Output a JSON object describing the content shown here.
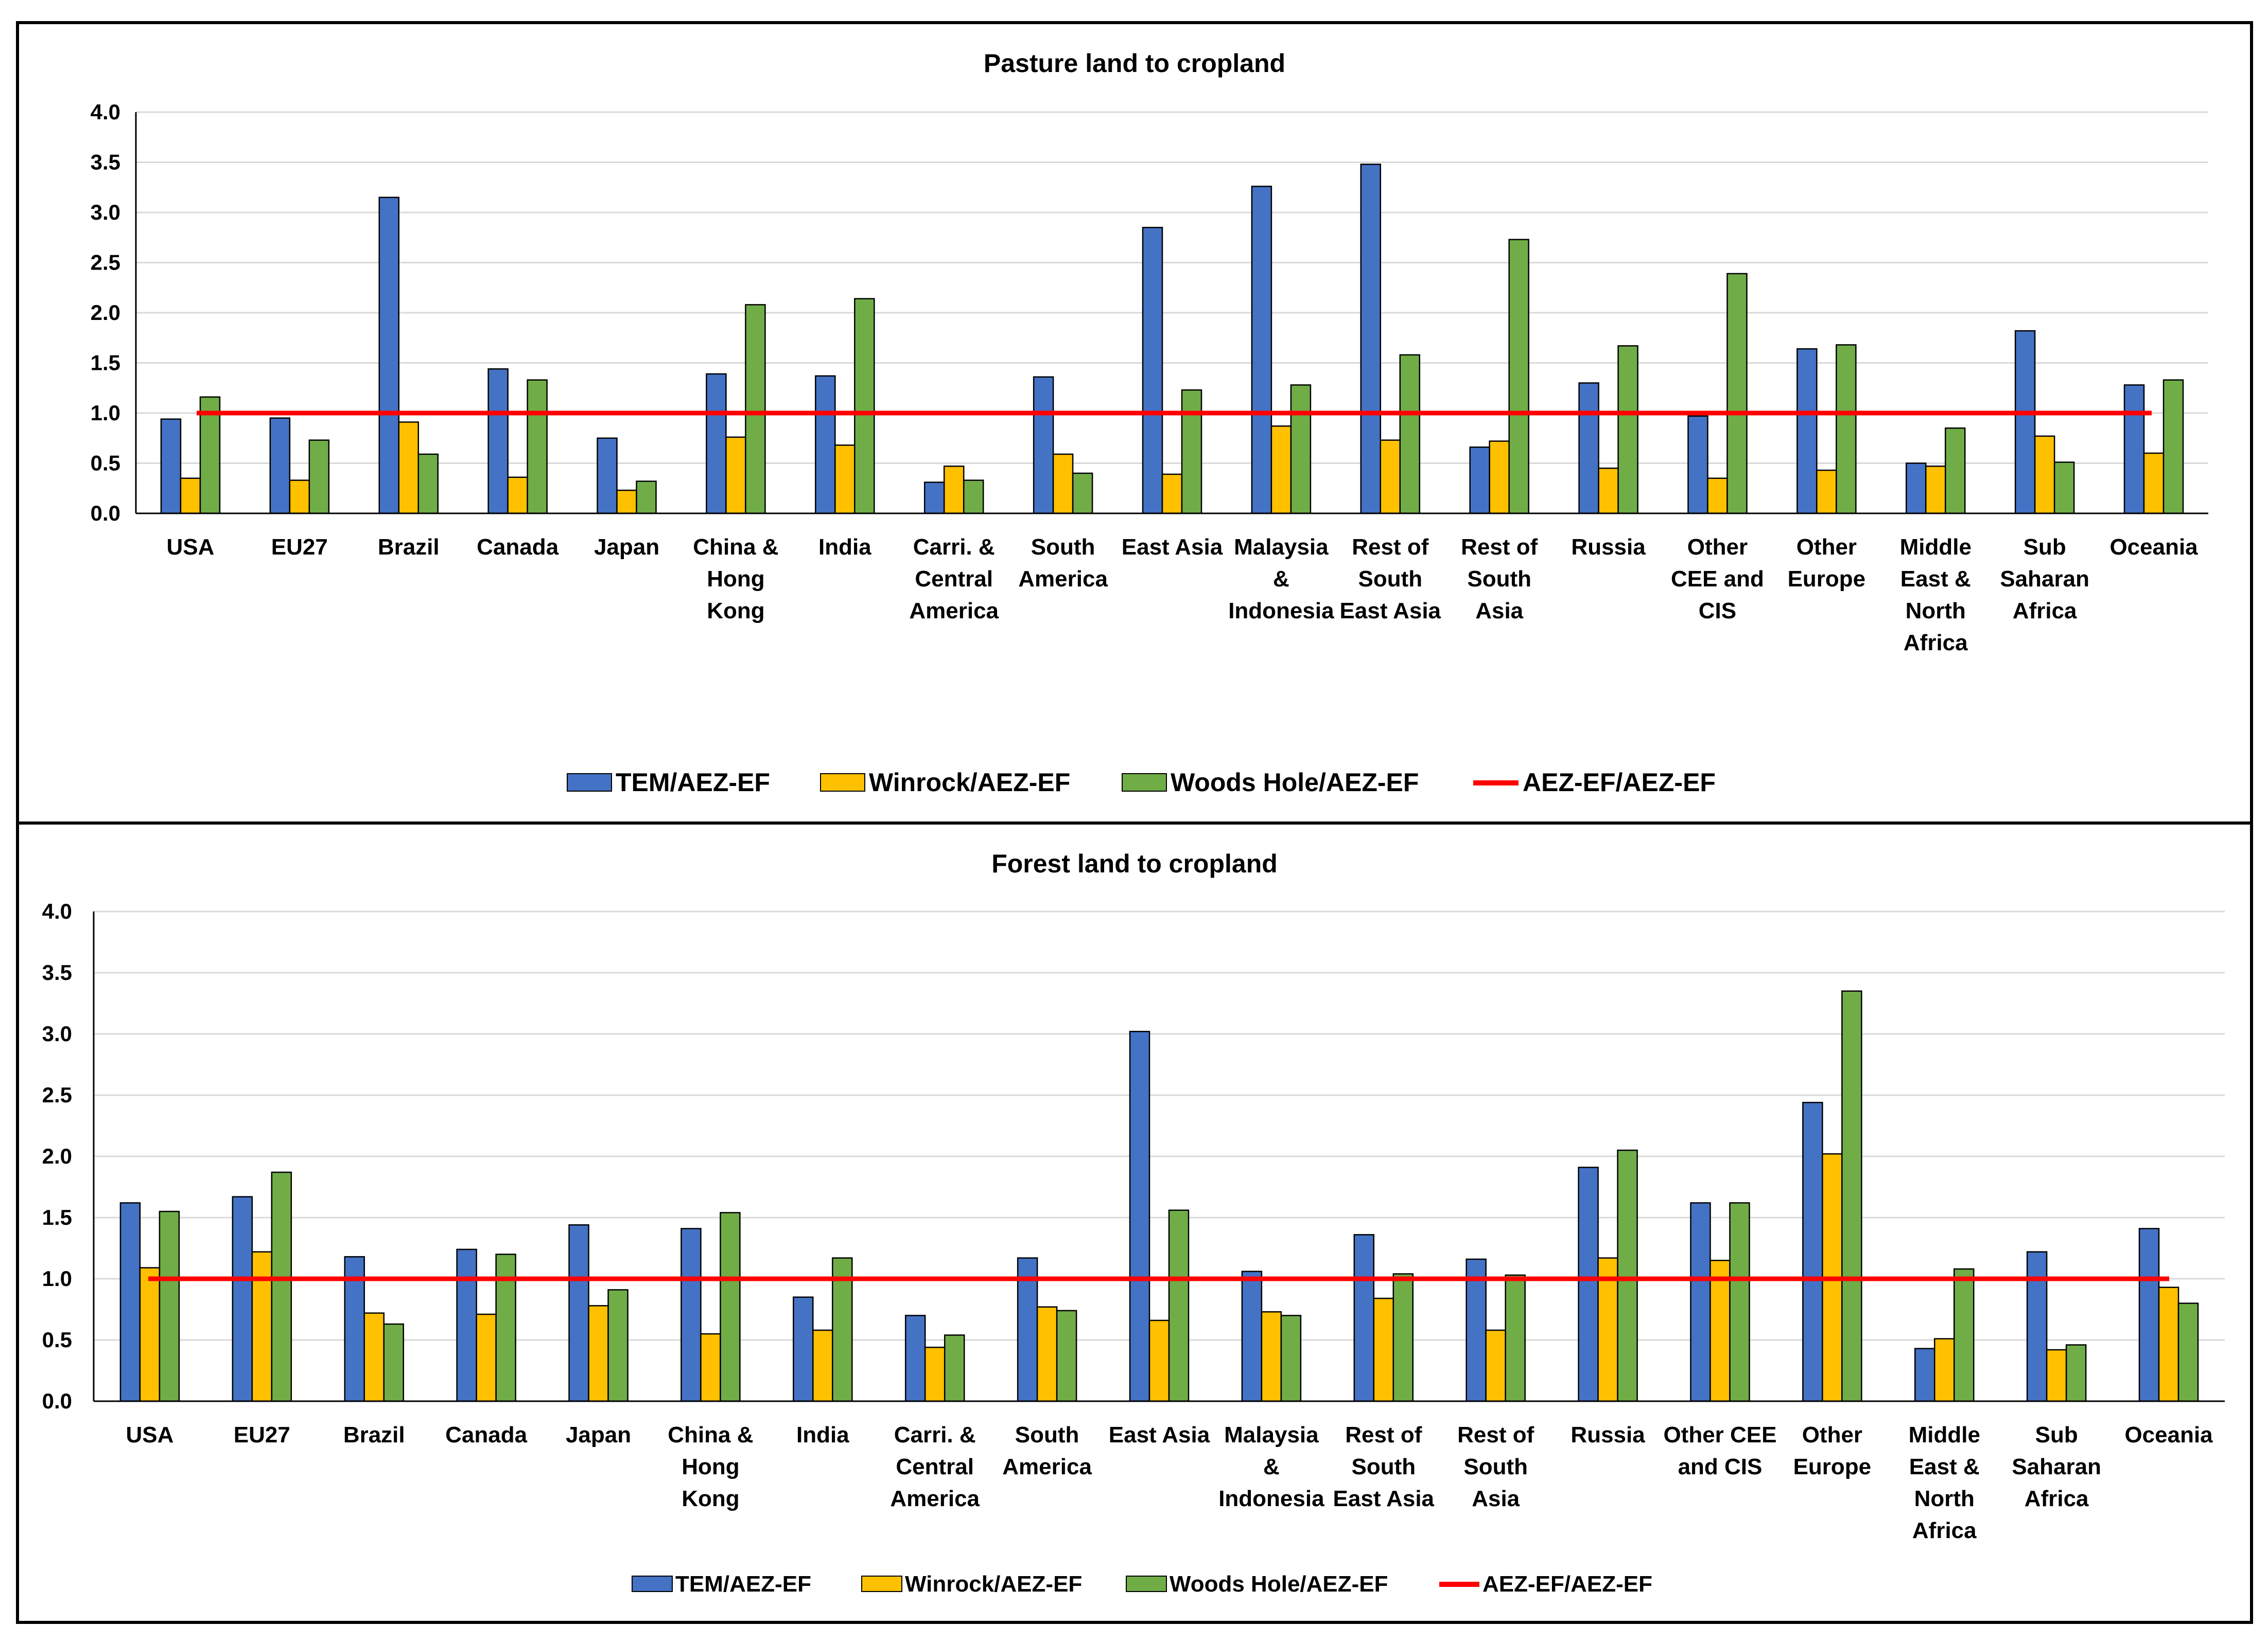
{
  "colors": {
    "tem": "#4472C4",
    "winrock": "#FFC000",
    "woods": "#70AD47",
    "reference": "#FF0000",
    "grid": "#D9D9D9",
    "border": "#000000"
  },
  "chart_data": [
    {
      "type": "bar",
      "title": "Pasture land to cropland",
      "ylim": [
        0,
        4
      ],
      "yticks": [
        "0.0",
        "0.5",
        "1.0",
        "1.5",
        "2.0",
        "2.5",
        "3.0",
        "3.5",
        "4.0"
      ],
      "ytick_values": [
        0,
        0.5,
        1,
        1.5,
        2,
        2.5,
        3,
        3.5,
        4
      ],
      "grid": true,
      "legend_position": "bottom",
      "categories": [
        "USA",
        "EU27",
        "Brazil",
        "Canada",
        "Japan",
        "China & Hong Kong",
        "India",
        "Carri. & Central America",
        "South America",
        "East Asia",
        "Malaysia & Indonesia",
        "Rest of South East Asia",
        "Rest of South Asia",
        "Russia",
        "Other CEE and CIS",
        "Other Europe",
        "Middle East & North Africa",
        "Sub Saharan Africa",
        "Oceania"
      ],
      "category_lines": [
        [
          "USA"
        ],
        [
          "EU27"
        ],
        [
          "Brazil"
        ],
        [
          "Canada"
        ],
        [
          "Japan"
        ],
        [
          "China &",
          "Hong",
          "Kong"
        ],
        [
          "India"
        ],
        [
          "Carri. &",
          "Central",
          "America"
        ],
        [
          "South",
          "America"
        ],
        [
          "East Asia"
        ],
        [
          "Malaysia",
          "&",
          "Indonesia"
        ],
        [
          "Rest of",
          "South",
          "East Asia"
        ],
        [
          "Rest of",
          "South",
          "Asia"
        ],
        [
          "Russia"
        ],
        [
          "Other",
          "CEE and",
          "CIS"
        ],
        [
          "Other",
          "Europe"
        ],
        [
          "Middle",
          "East &",
          "North",
          "Africa"
        ],
        [
          "Sub",
          "Saharan",
          "Africa"
        ],
        [
          "Oceania"
        ]
      ],
      "series": [
        {
          "name": "TEM/AEZ-EF",
          "key": "tem",
          "values": [
            0.94,
            0.95,
            3.15,
            1.44,
            0.75,
            1.39,
            1.37,
            0.31,
            1.36,
            2.85,
            3.26,
            3.48,
            0.66,
            1.3,
            0.97,
            1.64,
            0.5,
            1.82,
            1.28
          ]
        },
        {
          "name": "Winrock/AEZ-EF",
          "key": "winrock",
          "values": [
            0.35,
            0.33,
            0.91,
            0.36,
            0.23,
            0.76,
            0.68,
            0.47,
            0.59,
            0.39,
            0.87,
            0.73,
            0.72,
            0.45,
            0.35,
            0.43,
            0.47,
            0.77,
            0.6
          ]
        },
        {
          "name": "Woods Hole/AEZ-EF",
          "key": "woods",
          "values": [
            1.16,
            0.73,
            0.59,
            1.33,
            0.32,
            2.08,
            2.14,
            0.33,
            0.4,
            1.23,
            1.28,
            1.58,
            2.73,
            1.67,
            2.39,
            1.68,
            0.85,
            0.51,
            1.33
          ]
        }
      ],
      "reference_line": {
        "name": "AEZ-EF/AEZ-EF",
        "value": 1.0
      }
    },
    {
      "type": "bar",
      "title": "Forest land to cropland",
      "ylim": [
        0,
        4
      ],
      "yticks": [
        "0.0",
        "0.5",
        "1.0",
        "1.5",
        "2.0",
        "2.5",
        "3.0",
        "3.5",
        "4.0"
      ],
      "ytick_values": [
        0,
        0.5,
        1,
        1.5,
        2,
        2.5,
        3,
        3.5,
        4
      ],
      "grid": true,
      "legend_position": "bottom",
      "categories": [
        "USA",
        "EU27",
        "Brazil",
        "Canada",
        "Japan",
        "China & Hong Kong",
        "India",
        "Carri. & Central America",
        "South America",
        "East Asia",
        "Malaysia & Indonesia",
        "Rest of South East Asia",
        "Rest of South Asia",
        "Russia",
        "Other CEE and CIS",
        "Other Europe",
        "Middle East & North Africa",
        "Sub Saharan Africa",
        "Oceania"
      ],
      "category_lines": [
        [
          "USA"
        ],
        [
          "EU27"
        ],
        [
          "Brazil"
        ],
        [
          "Canada"
        ],
        [
          "Japan"
        ],
        [
          "China &",
          "Hong",
          "Kong"
        ],
        [
          "India"
        ],
        [
          "Carri. &",
          "Central",
          "America"
        ],
        [
          "South",
          "America"
        ],
        [
          "East Asia"
        ],
        [
          "Malaysia",
          "&",
          "Indonesia"
        ],
        [
          "Rest of",
          "South",
          "East Asia"
        ],
        [
          "Rest of",
          "South",
          "Asia"
        ],
        [
          "Russia"
        ],
        [
          "Other CEE",
          "and CIS"
        ],
        [
          "Other",
          "Europe"
        ],
        [
          "Middle",
          "East &",
          "North",
          "Africa"
        ],
        [
          "Sub",
          "Saharan",
          "Africa"
        ],
        [
          "Oceania"
        ]
      ],
      "series": [
        {
          "name": "TEM/AEZ-EF",
          "key": "tem",
          "values": [
            1.62,
            1.67,
            1.18,
            1.24,
            1.44,
            1.41,
            0.85,
            0.7,
            1.17,
            3.02,
            1.06,
            1.36,
            1.16,
            1.91,
            1.62,
            2.44,
            0.43,
            1.22,
            1.41
          ]
        },
        {
          "name": "Winrock/AEZ-EF",
          "key": "winrock",
          "values": [
            1.09,
            1.22,
            0.72,
            0.71,
            0.78,
            0.55,
            0.58,
            0.44,
            0.77,
            0.66,
            0.73,
            0.84,
            0.58,
            1.17,
            1.15,
            2.02,
            0.51,
            0.42,
            0.93
          ]
        },
        {
          "name": "Woods Hole/AEZ-EF",
          "key": "woods",
          "values": [
            1.55,
            1.87,
            0.63,
            1.2,
            0.91,
            1.54,
            1.17,
            0.54,
            0.74,
            1.56,
            0.7,
            1.04,
            1.03,
            2.05,
            1.62,
            3.35,
            1.08,
            0.46,
            0.8
          ]
        }
      ],
      "reference_line": {
        "name": "AEZ-EF/AEZ-EF",
        "value": 1.0
      }
    }
  ]
}
